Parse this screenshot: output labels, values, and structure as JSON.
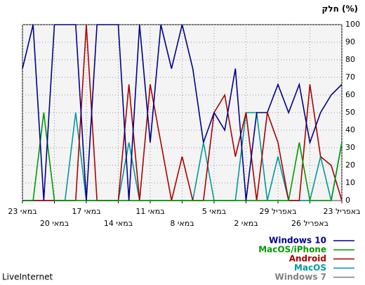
{
  "chart_data": {
    "type": "line",
    "title": "חלק (%)",
    "categories": [
      "23 באפריל",
      null,
      null,
      "26 באפריל",
      null,
      null,
      "29 באפריל",
      null,
      null,
      "2 במאי",
      null,
      null,
      "5 במאי",
      null,
      null,
      "8 במאי",
      null,
      null,
      "11 במאי",
      null,
      null,
      "14 במאי",
      null,
      null,
      "17 במאי",
      null,
      null,
      "20 במאי",
      null,
      null,
      "23 במאי"
    ],
    "series": [
      {
        "name": "Windows 10",
        "color": "#00008b",
        "values": [
          66,
          60,
          50,
          33,
          66,
          50,
          66,
          50,
          50,
          0,
          75,
          40,
          50,
          33,
          75,
          100,
          75,
          100,
          33,
          100,
          0,
          100,
          100,
          100,
          0,
          100,
          100,
          100,
          0,
          100,
          75
        ]
      },
      {
        "name": "MacOS/iPhone",
        "color": "#009900",
        "values": [
          33,
          0,
          0,
          0,
          33,
          0,
          0,
          0,
          0,
          0,
          0,
          0,
          0,
          0,
          0,
          0,
          0,
          0,
          0,
          0,
          0,
          0,
          0,
          0,
          0,
          0,
          0,
          0,
          50,
          0,
          0
        ]
      },
      {
        "name": "Android",
        "color": "#aa0000",
        "values": [
          0,
          20,
          25,
          66,
          0,
          0,
          33,
          50,
          0,
          50,
          25,
          60,
          50,
          0,
          0,
          25,
          0,
          33,
          66,
          0,
          66,
          0,
          0,
          0,
          100,
          0,
          0,
          0,
          0,
          0,
          0
        ]
      },
      {
        "name": "MacOS",
        "color": "#009999",
        "values": [
          33,
          0,
          25,
          0,
          0,
          0,
          25,
          0,
          50,
          50,
          0,
          0,
          0,
          33,
          0,
          0,
          0,
          0,
          0,
          0,
          33,
          0,
          0,
          0,
          0,
          50,
          0,
          0,
          0,
          0,
          0
        ]
      },
      {
        "name": "Windows 7",
        "color": "#808080",
        "values": [
          0,
          0,
          0,
          0,
          0,
          0,
          0,
          0,
          0,
          0,
          0,
          0,
          0,
          0,
          0,
          0,
          0,
          0,
          0,
          0,
          0,
          0,
          0,
          0,
          0,
          0,
          0,
          0,
          0,
          0,
          0
        ]
      }
    ],
    "ylim": [
      0,
      100
    ],
    "yticks": [
      0,
      10,
      20,
      30,
      40,
      50,
      60,
      70,
      80,
      90,
      100
    ],
    "grid": true,
    "footer": "LiveInternet"
  }
}
